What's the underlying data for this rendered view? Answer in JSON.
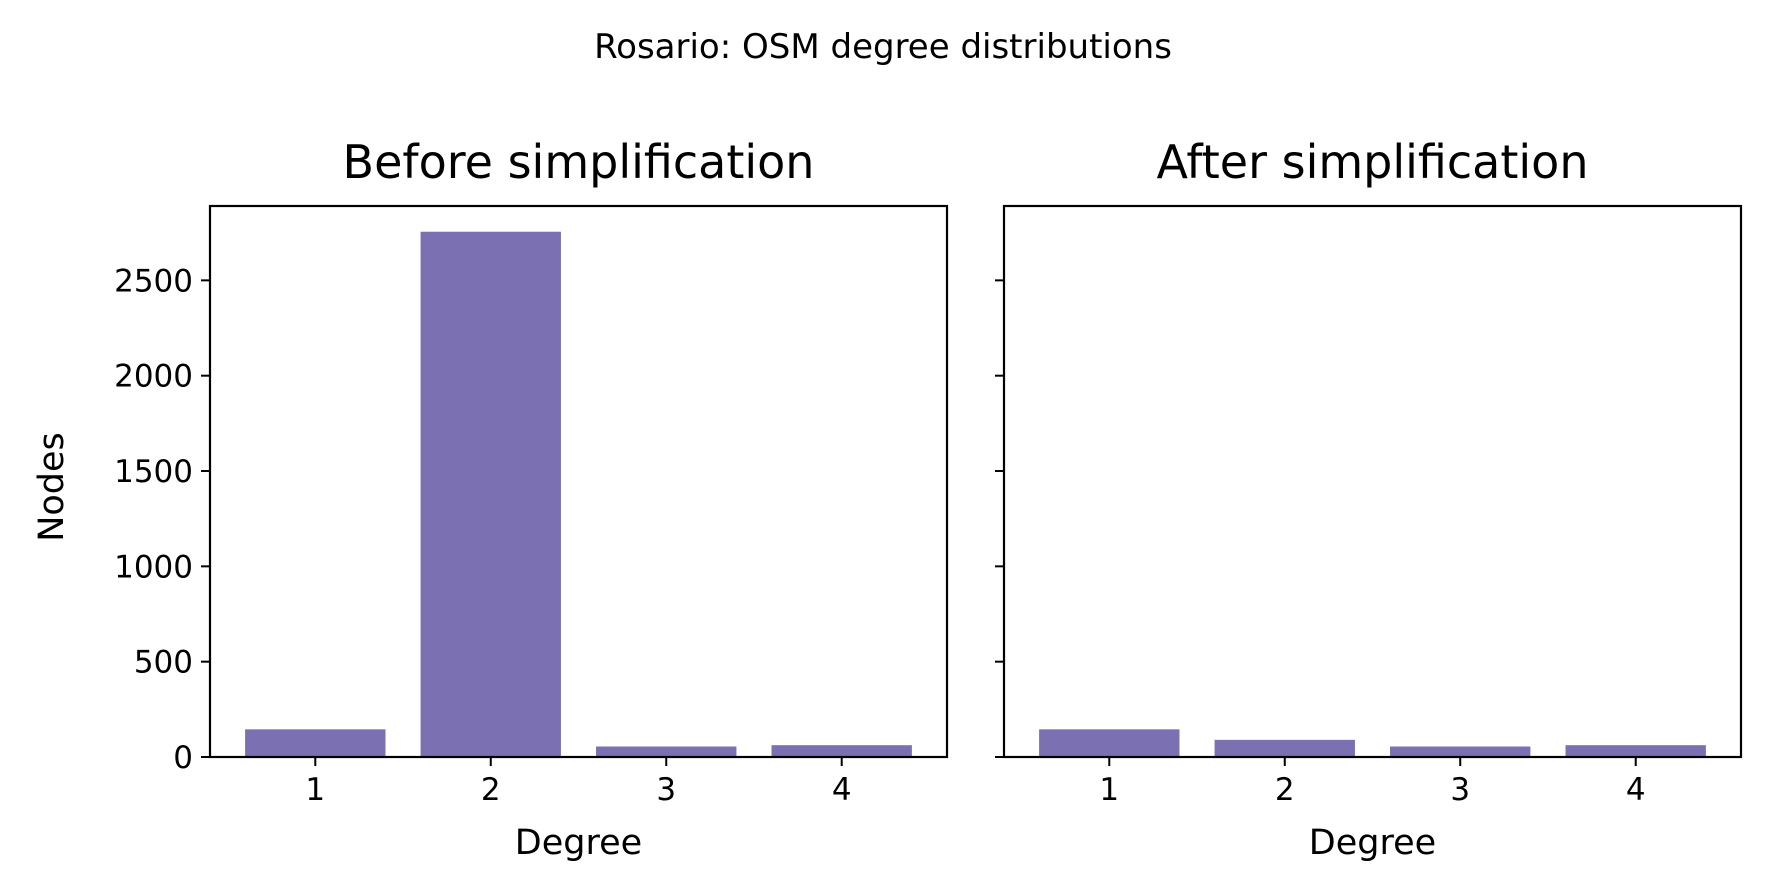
{
  "chart_data": {
    "title": "Rosario: OSM degree distributions",
    "bar_color": "#7a70b2",
    "shared_y": true,
    "ylabel": "Nodes",
    "ylim": [
      0,
      2890
    ],
    "yticks": [
      0,
      500,
      1000,
      1500,
      2000,
      2500
    ],
    "grid": false,
    "panels": [
      {
        "type": "bar",
        "title": "Before simplification",
        "xlabel": "Degree",
        "categories": [
          "1",
          "2",
          "3",
          "4"
        ],
        "values": [
          145,
          2755,
          55,
          62
        ],
        "show_ytick_labels": true
      },
      {
        "type": "bar",
        "title": "After simplification",
        "xlabel": "Degree",
        "categories": [
          "1",
          "2",
          "3",
          "4"
        ],
        "values": [
          145,
          90,
          55,
          62
        ],
        "show_ytick_labels": false
      }
    ]
  }
}
